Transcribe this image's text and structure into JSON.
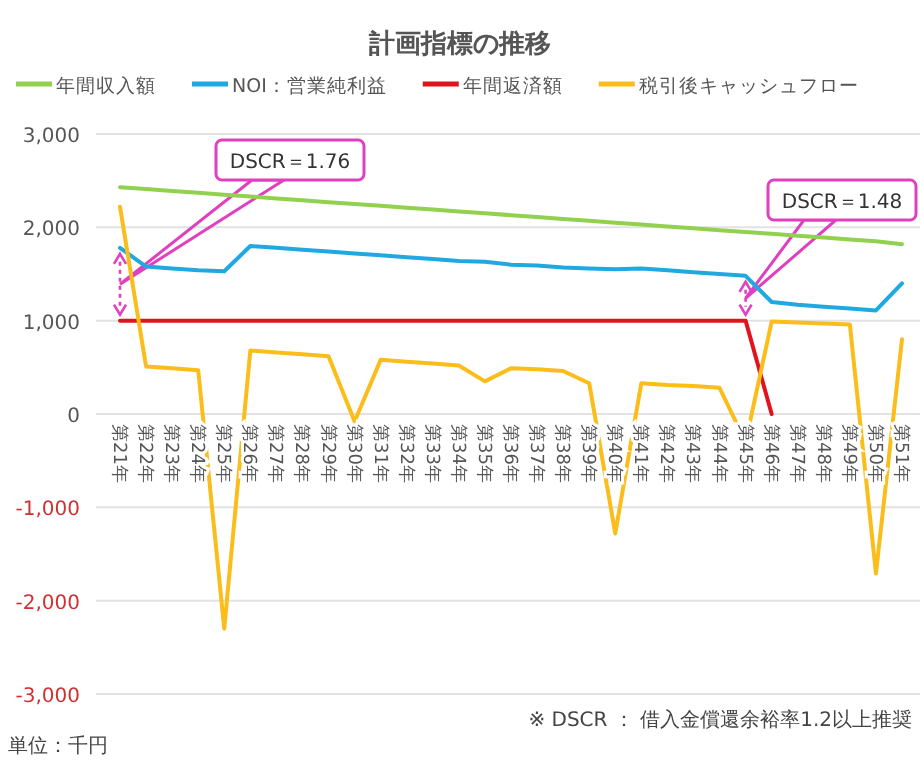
{
  "chart_data": {
    "type": "line",
    "title": "計画指標の推移",
    "categories": [
      "第21年",
      "第22年",
      "第23年",
      "第24年",
      "第25年",
      "第26年",
      "第27年",
      "第28年",
      "第29年",
      "第30年",
      "第31年",
      "第32年",
      "第33年",
      "第34年",
      "第35年",
      "第36年",
      "第37年",
      "第38年",
      "第39年",
      "第40年",
      "第41年",
      "第42年",
      "第43年",
      "第44年",
      "第45年",
      "第46年",
      "第47年",
      "第48年",
      "第49年",
      "第50年",
      "第51年"
    ],
    "series": [
      {
        "name": "年間収入額",
        "color": "#92d050",
        "values": [
          2430,
          2410,
          2390,
          2370,
          2350,
          2330,
          2310,
          2290,
          2270,
          2250,
          2230,
          2210,
          2190,
          2170,
          2150,
          2130,
          2110,
          2090,
          2070,
          2050,
          2030,
          2010,
          1990,
          1970,
          1950,
          1930,
          1910,
          1890,
          1870,
          1850,
          1820
        ]
      },
      {
        "name": "NOI：営業純利益",
        "color": "#1fa9e0",
        "values": [
          1780,
          1580,
          1560,
          1540,
          1530,
          1800,
          1780,
          1760,
          1740,
          1720,
          1700,
          1680,
          1660,
          1640,
          1630,
          1600,
          1590,
          1570,
          1560,
          1550,
          1560,
          1540,
          1520,
          1500,
          1480,
          1200,
          1170,
          1150,
          1130,
          1110,
          1400
        ]
      },
      {
        "name": "年間返済額",
        "color": "#e0141e",
        "values": [
          1000,
          1000,
          1000,
          1000,
          1000,
          1000,
          1000,
          1000,
          1000,
          1000,
          1000,
          1000,
          1000,
          1000,
          1000,
          1000,
          1000,
          1000,
          1000,
          1000,
          1000,
          1000,
          1000,
          1000,
          1000,
          0,
          null,
          null,
          null,
          null,
          null
        ]
      },
      {
        "name": "税引後キャッシュフロー",
        "color": "#fbbd1a",
        "values": [
          2220,
          510,
          490,
          470,
          -2300,
          680,
          660,
          640,
          620,
          -80,
          580,
          560,
          540,
          520,
          350,
          490,
          480,
          460,
          330,
          -1280,
          330,
          310,
          300,
          280,
          -300,
          990,
          980,
          970,
          960,
          -1710,
          800
        ]
      }
    ],
    "ylim": [
      -3000,
      3000
    ],
    "yticks": [
      {
        "value": -3000,
        "label": "-3,000"
      },
      {
        "value": -2000,
        "label": "-2,000"
      },
      {
        "value": -1000,
        "label": "-1,000"
      },
      0,
      {
        "value": 1000,
        "label": "1,000"
      },
      {
        "value": 2000,
        "label": "2,000"
      },
      {
        "value": 3000,
        "label": "3,000"
      }
    ],
    "grid": "y",
    "legend": "top",
    "annotations": [
      "※ DSCR ： 借入金償還余裕率1.2以上推奨",
      "単位：千円",
      "DSCR＝1.76",
      "DSCR＝1.48"
    ]
  }
}
